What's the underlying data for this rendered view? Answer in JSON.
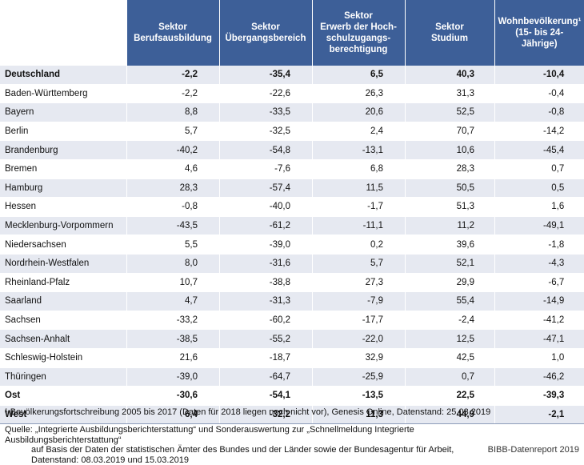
{
  "table": {
    "headers": [
      "",
      "Sektor\nBerufsausbildung",
      "Sektor\nÜbergangsbereich",
      "Sektor\nErwerb der Hoch-\nschulzugangs-\nberechtigung",
      "Sektor\nStudium",
      "Wohnbevölkerung¹\n(15- bis 24-Jährige)"
    ],
    "rows": [
      {
        "label": "Deutschland",
        "values": [
          "-2,2",
          "-35,4",
          "6,5",
          "40,3",
          "-10,4"
        ],
        "bold": true
      },
      {
        "label": "Baden-Württemberg",
        "values": [
          "-2,2",
          "-22,6",
          "26,3",
          "31,3",
          "-0,4"
        ]
      },
      {
        "label": "Bayern",
        "values": [
          "8,8",
          "-33,5",
          "20,6",
          "52,5",
          "-0,8"
        ]
      },
      {
        "label": "Berlin",
        "values": [
          "5,7",
          "-32,5",
          "2,4",
          "70,7",
          "-14,2"
        ]
      },
      {
        "label": "Brandenburg",
        "values": [
          "-40,2",
          "-54,8",
          "-13,1",
          "10,6",
          "-45,4"
        ]
      },
      {
        "label": "Bremen",
        "values": [
          "4,6",
          "-7,6",
          "6,8",
          "28,3",
          "0,7"
        ]
      },
      {
        "label": "Hamburg",
        "values": [
          "28,3",
          "-57,4",
          "11,5",
          "50,5",
          "0,5"
        ]
      },
      {
        "label": "Hessen",
        "values": [
          "-0,8",
          "-40,0",
          "-1,7",
          "51,3",
          "1,6"
        ]
      },
      {
        "label": "Mecklenburg-Vorpommern",
        "values": [
          "-43,5",
          "-61,2",
          "-11,1",
          "11,2",
          "-49,1"
        ]
      },
      {
        "label": "Niedersachsen",
        "values": [
          "5,5",
          "-39,0",
          "0,2",
          "39,6",
          "-1,8"
        ]
      },
      {
        "label": "Nordrhein-Westfalen",
        "values": [
          "8,0",
          "-31,6",
          "5,7",
          "52,1",
          "-4,3"
        ]
      },
      {
        "label": "Rheinland-Pfalz",
        "values": [
          "10,7",
          "-38,8",
          "27,3",
          "29,9",
          "-6,7"
        ]
      },
      {
        "label": "Saarland",
        "values": [
          "4,7",
          "-31,3",
          "-7,9",
          "55,4",
          "-14,9"
        ]
      },
      {
        "label": "Sachsen",
        "values": [
          "-33,2",
          "-60,2",
          "-17,7",
          "-2,4",
          "-41,2"
        ]
      },
      {
        "label": "Sachsen-Anhalt",
        "values": [
          "-38,5",
          "-55,2",
          "-22,0",
          "12,5",
          "-47,1"
        ]
      },
      {
        "label": "Schleswig-Holstein",
        "values": [
          "21,6",
          "-18,7",
          "32,9",
          "42,5",
          "1,0"
        ]
      },
      {
        "label": "Thüringen",
        "values": [
          "-39,0",
          "-64,7",
          "-25,9",
          "0,7",
          "-46,2"
        ]
      },
      {
        "label": "Ost",
        "values": [
          "-30,6",
          "-54,1",
          "-13,5",
          "22,5",
          "-39,3"
        ],
        "bold": true
      },
      {
        "label": "West",
        "values": [
          "6,4",
          "-32,2",
          "11,3",
          "44,9",
          "-2,1"
        ],
        "bold": true
      }
    ]
  },
  "footnote": "¹ Bevölkerungsfortschreibung 2005 bis 2017 (Daten für 2018 liegen noch nicht vor), Genesis Online, Datenstand: 25.03.2019",
  "source": {
    "line1": "Quelle: „Integrierte Ausbildungsberichterstattung“ und Sonderauswertung zur „Schnellmeldung Integrierte Ausbildungsberichterstattung“",
    "line2": "auf Basis der Daten der statistischen Ämter des Bundes und der Länder sowie der Bundesagentur für Arbeit,",
    "line3": "Datenstand: 08.03.2019 und 15.03.2019"
  },
  "credit": "BIBB-Datenreport 2019"
}
